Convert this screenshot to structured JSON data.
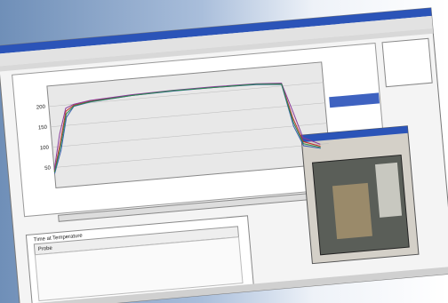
{
  "window": {
    "table_title": "Time at Temperature",
    "table_header": "Probe"
  },
  "chart_data": {
    "type": "line",
    "x": [
      0,
      2,
      4,
      6,
      10,
      20,
      30,
      40,
      50,
      56,
      58,
      60,
      64
    ],
    "xlim": [
      0,
      66
    ],
    "ylim": [
      0,
      250
    ],
    "yticks": [
      50,
      100,
      150,
      200
    ],
    "grid": true,
    "series": [
      {
        "color": "#c0302a",
        "values": [
          40,
          110,
          185,
          198,
          204,
          210,
          212,
          212,
          210,
          206,
          120,
          60,
          45
        ]
      },
      {
        "color": "#3a5fb0",
        "values": [
          35,
          90,
          170,
          195,
          202,
          209,
          211,
          211,
          209,
          204,
          100,
          50,
          40
        ]
      },
      {
        "color": "#8a3a9a",
        "values": [
          45,
          130,
          192,
          200,
          206,
          211,
          213,
          213,
          211,
          207,
          140,
          70,
          50
        ]
      },
      {
        "color": "#2a8a4a",
        "values": [
          38,
          100,
          178,
          196,
          203,
          209,
          212,
          211,
          210,
          205,
          110,
          55,
          42
        ]
      }
    ]
  }
}
